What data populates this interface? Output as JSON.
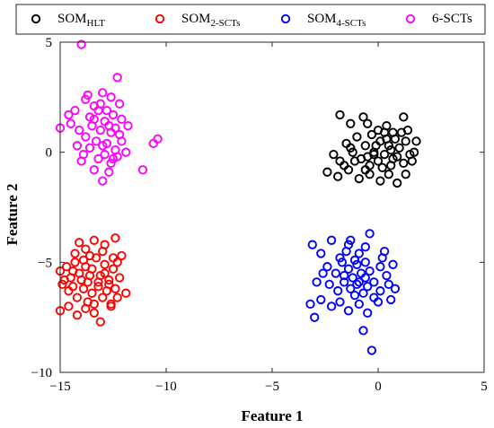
{
  "chart_data": {
    "type": "scatter",
    "xlabel": "Feature 1",
    "ylabel": "Feature 2",
    "xlim": [
      -15,
      5
    ],
    "ylim": [
      -10,
      5
    ],
    "xticks": [
      -15,
      -10,
      -5,
      0,
      5
    ],
    "yticks": [
      -10,
      -5,
      0,
      5
    ],
    "grid": false,
    "legend_position": "top, horizontal, outside plot",
    "series": [
      {
        "name": "SOM",
        "subscript": "HLT",
        "color": "#000000",
        "marker": "open-circle",
        "points": [
          [
            -1.8,
            1.7
          ],
          [
            -1.3,
            1.3
          ],
          [
            -0.7,
            1.6
          ],
          [
            -0.5,
            1.3
          ],
          [
            0.0,
            1.0
          ],
          [
            0.4,
            1.2
          ],
          [
            0.7,
            0.9
          ],
          [
            1.2,
            1.6
          ],
          [
            1.4,
            1.0
          ],
          [
            1.8,
            0.5
          ],
          [
            -2.1,
            -0.1
          ],
          [
            -1.8,
            -0.4
          ],
          [
            -1.5,
            0.4
          ],
          [
            -1.2,
            0.0
          ],
          [
            -1.0,
            0.7
          ],
          [
            -0.8,
            -0.3
          ],
          [
            -0.6,
            0.3
          ],
          [
            -0.4,
            -0.6
          ],
          [
            -0.3,
            0.8
          ],
          [
            -0.2,
            0.0
          ],
          [
            0.0,
            -0.4
          ],
          [
            0.1,
            0.5
          ],
          [
            0.3,
            -0.1
          ],
          [
            0.3,
            0.9
          ],
          [
            0.5,
            0.3
          ],
          [
            0.6,
            -0.6
          ],
          [
            0.8,
            0.6
          ],
          [
            0.9,
            -0.2
          ],
          [
            1.0,
            0.2
          ],
          [
            1.2,
            -0.5
          ],
          [
            1.3,
            0.5
          ],
          [
            1.5,
            -0.1
          ],
          [
            1.6,
            -0.4
          ],
          [
            -2.4,
            -0.9
          ],
          [
            -1.9,
            -1.1
          ],
          [
            -1.4,
            -0.8
          ],
          [
            -0.9,
            -1.2
          ],
          [
            -0.4,
            -1.0
          ],
          [
            0.1,
            -1.3
          ],
          [
            0.5,
            -1.0
          ],
          [
            0.9,
            -1.4
          ],
          [
            1.3,
            -1.0
          ],
          [
            -1.6,
            -0.6
          ],
          [
            -0.5,
            -0.2
          ],
          [
            0.6,
            0.1
          ],
          [
            -0.1,
            0.3
          ],
          [
            0.2,
            -0.7
          ],
          [
            1.1,
            0.9
          ],
          [
            -1.1,
            -0.4
          ],
          [
            0.4,
            0.6
          ],
          [
            -0.6,
            -0.8
          ],
          [
            1.7,
            0.0
          ],
          [
            -0.2,
            -0.1
          ],
          [
            0.7,
            -0.3
          ],
          [
            -1.3,
            0.2
          ]
        ]
      },
      {
        "name": "SOM",
        "subscript": "2-SCTs",
        "color": "#ff0000",
        "marker": "open-circle",
        "points": [
          [
            -14.1,
            -4.1
          ],
          [
            -13.8,
            -4.4
          ],
          [
            -13.4,
            -4.0
          ],
          [
            -12.9,
            -4.2
          ],
          [
            -12.4,
            -3.9
          ],
          [
            -12.1,
            -4.7
          ],
          [
            -15.0,
            -5.4
          ],
          [
            -14.7,
            -5.2
          ],
          [
            -14.5,
            -5.7
          ],
          [
            -14.3,
            -5.0
          ],
          [
            -14.1,
            -5.5
          ],
          [
            -13.9,
            -4.9
          ],
          [
            -13.7,
            -5.9
          ],
          [
            -13.5,
            -5.3
          ],
          [
            -13.3,
            -4.8
          ],
          [
            -13.1,
            -5.6
          ],
          [
            -12.9,
            -5.1
          ],
          [
            -12.7,
            -5.8
          ],
          [
            -12.5,
            -5.3
          ],
          [
            -12.3,
            -5.0
          ],
          [
            -12.2,
            -5.7
          ],
          [
            -14.9,
            -6.0
          ],
          [
            -14.6,
            -6.3
          ],
          [
            -14.4,
            -6.1
          ],
          [
            -14.2,
            -6.6
          ],
          [
            -13.9,
            -6.2
          ],
          [
            -13.7,
            -6.8
          ],
          [
            -13.5,
            -6.4
          ],
          [
            -13.2,
            -6.1
          ],
          [
            -13.0,
            -6.6
          ],
          [
            -12.8,
            -6.3
          ],
          [
            -12.6,
            -6.9
          ],
          [
            -12.4,
            -6.2
          ],
          [
            -11.9,
            -6.4
          ],
          [
            -15.0,
            -7.2
          ],
          [
            -14.6,
            -7.0
          ],
          [
            -14.2,
            -7.4
          ],
          [
            -13.8,
            -7.1
          ],
          [
            -13.4,
            -7.3
          ],
          [
            -13.1,
            -7.7
          ],
          [
            -12.6,
            -7.0
          ],
          [
            -14.0,
            -5.8
          ],
          [
            -13.6,
            -5.6
          ],
          [
            -13.2,
            -5.9
          ],
          [
            -12.9,
            -5.5
          ],
          [
            -14.4,
            -5.4
          ],
          [
            -13.0,
            -4.5
          ],
          [
            -13.8,
            -5.2
          ],
          [
            -12.7,
            -6.0
          ],
          [
            -14.8,
            -5.8
          ],
          [
            -13.4,
            -6.9
          ],
          [
            -12.3,
            -6.6
          ],
          [
            -14.3,
            -4.6
          ],
          [
            -13.6,
            -4.7
          ],
          [
            -12.5,
            -4.8
          ]
        ]
      },
      {
        "name": "SOM",
        "subscript": "4-SCTs",
        "color": "#0000ff",
        "marker": "open-circle",
        "points": [
          [
            -0.4,
            -3.7
          ],
          [
            -1.3,
            -4.0
          ],
          [
            -0.6,
            -4.3
          ],
          [
            0.3,
            -4.5
          ],
          [
            -3.1,
            -4.2
          ],
          [
            -2.7,
            -4.6
          ],
          [
            -2.2,
            -4.0
          ],
          [
            -1.8,
            -4.8
          ],
          [
            -1.5,
            -4.5
          ],
          [
            -1.1,
            -4.9
          ],
          [
            -0.9,
            -4.6
          ],
          [
            -2.4,
            -5.2
          ],
          [
            -2.0,
            -5.5
          ],
          [
            -1.7,
            -5.0
          ],
          [
            -1.4,
            -5.3
          ],
          [
            -1.2,
            -5.7
          ],
          [
            -1.0,
            -5.1
          ],
          [
            -0.8,
            -5.5
          ],
          [
            -0.6,
            -5.0
          ],
          [
            -0.4,
            -5.4
          ],
          [
            -0.2,
            -5.9
          ],
          [
            0.1,
            -5.2
          ],
          [
            0.4,
            -5.6
          ],
          [
            0.7,
            -5.1
          ],
          [
            -2.9,
            -5.9
          ],
          [
            -2.3,
            -6.0
          ],
          [
            -1.9,
            -6.3
          ],
          [
            -1.6,
            -5.9
          ],
          [
            -1.3,
            -6.2
          ],
          [
            -1.1,
            -6.5
          ],
          [
            -0.9,
            -5.9
          ],
          [
            -0.7,
            -6.4
          ],
          [
            -0.5,
            -6.1
          ],
          [
            -0.2,
            -6.6
          ],
          [
            0.1,
            -6.3
          ],
          [
            0.5,
            -6.0
          ],
          [
            0.8,
            -6.2
          ],
          [
            -3.2,
            -6.9
          ],
          [
            -2.7,
            -6.7
          ],
          [
            -2.2,
            -7.0
          ],
          [
            -1.8,
            -6.8
          ],
          [
            -1.4,
            -7.2
          ],
          [
            -0.9,
            -6.9
          ],
          [
            -0.5,
            -7.3
          ],
          [
            0.0,
            -6.8
          ],
          [
            -3.0,
            -7.5
          ],
          [
            -0.7,
            -8.1
          ],
          [
            -0.3,
            -9.0
          ],
          [
            -1.6,
            -5.6
          ],
          [
            -1.0,
            -6.0
          ],
          [
            -2.6,
            -5.5
          ],
          [
            0.2,
            -4.8
          ],
          [
            -1.4,
            -4.2
          ],
          [
            0.6,
            -6.7
          ],
          [
            -0.6,
            -5.7
          ]
        ]
      },
      {
        "name": "6-SCTs",
        "color": "#ff00ff",
        "marker": "open-circle",
        "points": [
          [
            -14.0,
            4.9
          ],
          [
            -12.3,
            3.4
          ],
          [
            -13.8,
            2.4
          ],
          [
            -13.4,
            2.1
          ],
          [
            -13.0,
            2.7
          ],
          [
            -12.6,
            2.5
          ],
          [
            -12.2,
            2.2
          ],
          [
            -14.3,
            1.9
          ],
          [
            -13.6,
            1.6
          ],
          [
            -13.2,
            1.9
          ],
          [
            -12.9,
            1.4
          ],
          [
            -12.5,
            1.7
          ],
          [
            -12.1,
            1.5
          ],
          [
            -11.8,
            1.2
          ],
          [
            -15.0,
            1.1
          ],
          [
            -14.5,
            1.3
          ],
          [
            -14.1,
            1.0
          ],
          [
            -13.8,
            0.7
          ],
          [
            -13.5,
            1.2
          ],
          [
            -13.3,
            0.5
          ],
          [
            -13.1,
            1.0
          ],
          [
            -12.8,
            0.4
          ],
          [
            -12.6,
            0.9
          ],
          [
            -12.4,
            0.1
          ],
          [
            -12.1,
            0.5
          ],
          [
            -11.9,
            0.0
          ],
          [
            -14.2,
            0.3
          ],
          [
            -13.9,
            -0.1
          ],
          [
            -13.6,
            0.2
          ],
          [
            -13.2,
            -0.3
          ],
          [
            -12.9,
            -0.1
          ],
          [
            -12.6,
            -0.5
          ],
          [
            -12.3,
            -0.2
          ],
          [
            -14.0,
            -0.4
          ],
          [
            -13.4,
            -0.8
          ],
          [
            -13.0,
            -1.3
          ],
          [
            -12.7,
            -0.9
          ],
          [
            -11.1,
            -0.8
          ],
          [
            -10.6,
            0.4
          ],
          [
            -10.4,
            0.6
          ],
          [
            -12.8,
            1.9
          ],
          [
            -13.7,
            2.6
          ],
          [
            -12.4,
            1.1
          ],
          [
            -13.0,
            0.3
          ],
          [
            -12.7,
            1.2
          ],
          [
            -13.4,
            1.5
          ],
          [
            -12.5,
            -0.3
          ],
          [
            -14.6,
            1.7
          ],
          [
            -13.1,
            2.2
          ],
          [
            -12.2,
            0.8
          ]
        ]
      }
    ]
  }
}
